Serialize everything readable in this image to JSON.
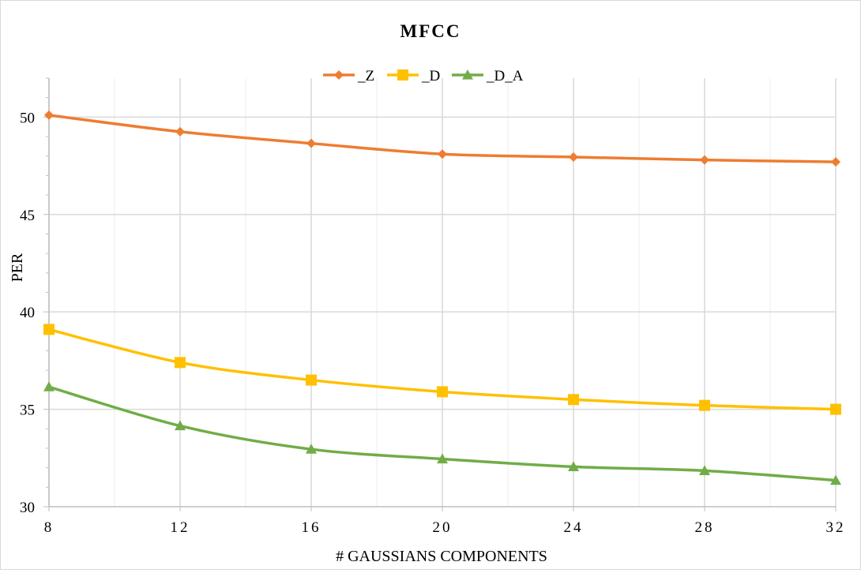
{
  "chart_data": {
    "type": "line",
    "title": "MFCC",
    "xlabel": "# GAUSSIANS COMPONENTS",
    "ylabel": "PER",
    "x": [
      8,
      12,
      16,
      20,
      24,
      28,
      32
    ],
    "xlim": [
      8,
      32
    ],
    "ylim": [
      30,
      52
    ],
    "y_ticks": [
      30,
      35,
      40,
      45,
      50
    ],
    "grid": true,
    "legend_position": "top",
    "series": [
      {
        "name": "_Z",
        "color": "#ED7D31",
        "marker": "diamond",
        "values": [
          50.1,
          49.25,
          48.65,
          48.1,
          47.95,
          47.8,
          47.7
        ]
      },
      {
        "name": "_D",
        "color": "#FFC000",
        "marker": "square",
        "values": [
          39.1,
          37.4,
          36.5,
          35.9,
          35.5,
          35.2,
          35.0
        ]
      },
      {
        "name": "_D_A",
        "color": "#70AD47",
        "marker": "triangle",
        "values": [
          36.15,
          34.15,
          32.95,
          32.45,
          32.05,
          31.85,
          31.35
        ]
      }
    ]
  }
}
